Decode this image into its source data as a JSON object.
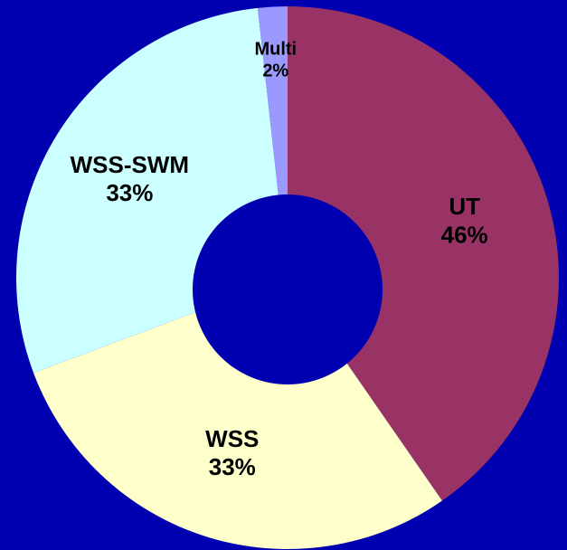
{
  "chart_data": {
    "type": "donut",
    "categories": [
      "UT",
      "WSS",
      "WSS-SWM",
      "Multi"
    ],
    "values": [
      46,
      33,
      33,
      2
    ],
    "value_labels": [
      "46%",
      "33%",
      "33%",
      "2%"
    ],
    "colors": [
      "#993366",
      "#ffffcc",
      "#ccffff",
      "#9999ff"
    ]
  }
}
